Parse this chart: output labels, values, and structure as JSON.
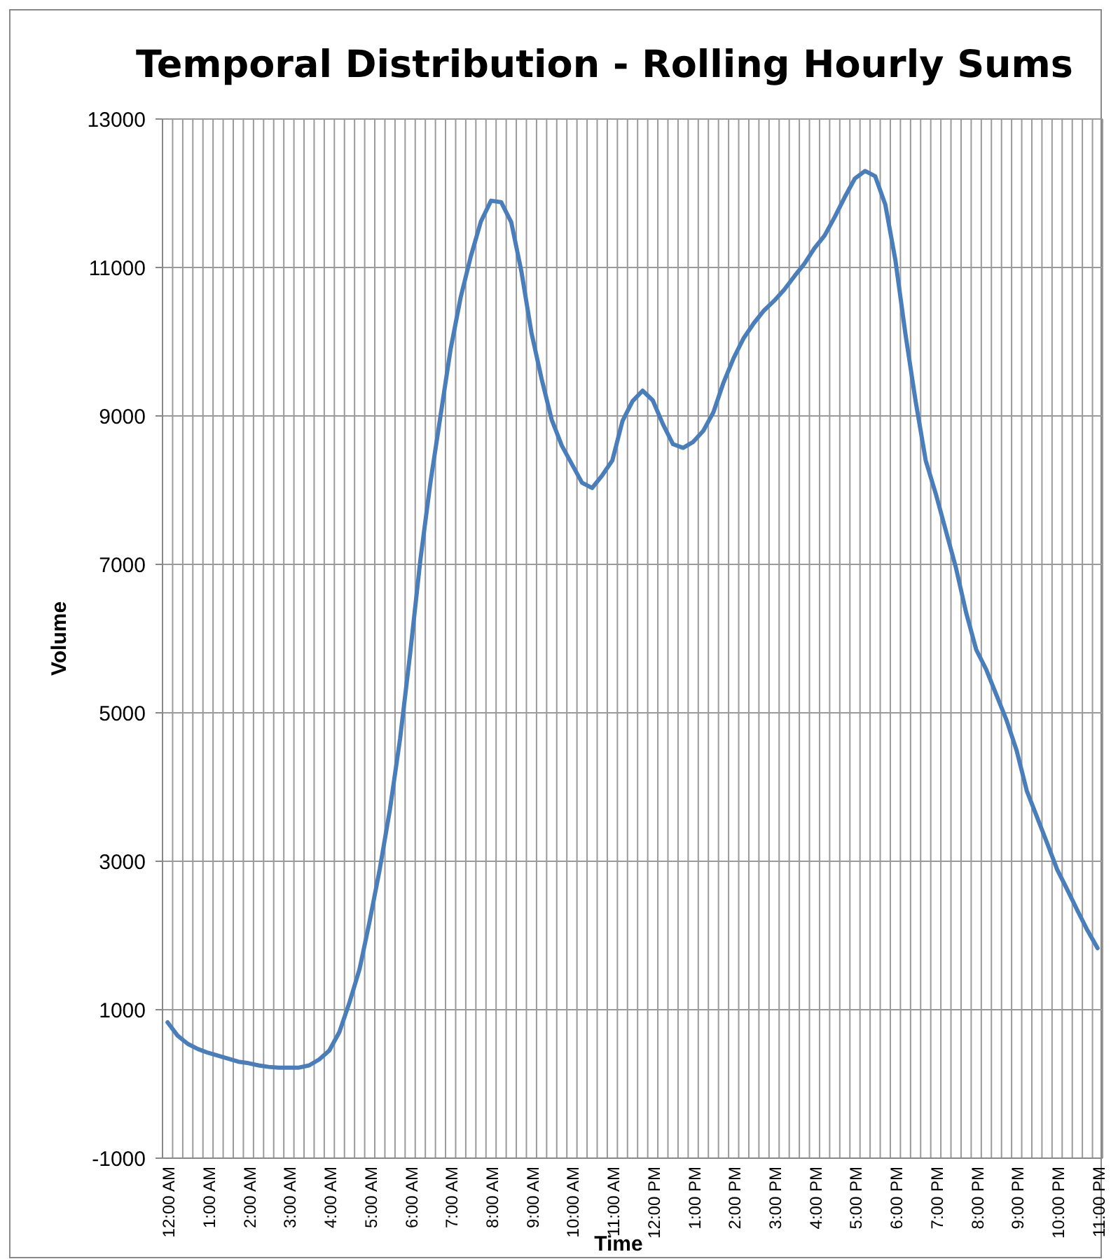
{
  "chart_data": {
    "type": "line",
    "title": "Temporal Distribution - Rolling Hourly Sums",
    "xlabel": "Time",
    "ylabel": "Volume",
    "categories": [
      "12:00 AM",
      null,
      null,
      null,
      "1:00 AM",
      null,
      null,
      null,
      "2:00 AM",
      null,
      null,
      null,
      "3:00 AM",
      null,
      null,
      null,
      "4:00 AM",
      null,
      null,
      null,
      "5:00 AM",
      null,
      null,
      null,
      "6:00 AM",
      null,
      null,
      null,
      "7:00 AM",
      null,
      null,
      null,
      "8:00 AM",
      null,
      null,
      null,
      "9:00 AM",
      null,
      null,
      null,
      "10:00 AM",
      null,
      null,
      null,
      "11:00 AM",
      null,
      null,
      null,
      "12:00 PM",
      null,
      null,
      null,
      "1:00 PM",
      null,
      null,
      null,
      "2:00 PM",
      null,
      null,
      null,
      "3:00 PM",
      null,
      null,
      null,
      "4:00 PM",
      null,
      null,
      null,
      "5:00 PM",
      null,
      null,
      null,
      "6:00 PM",
      null,
      null,
      null,
      "7:00 PM",
      null,
      null,
      null,
      "8:00 PM",
      null,
      null,
      null,
      "9:00 PM",
      null,
      null,
      null,
      "10:00 PM",
      null,
      null,
      null,
      "11:00 PM"
    ],
    "series": [
      {
        "color": "#4a7ebb",
        "values": [
          830,
          650,
          540,
          470,
          420,
          380,
          340,
          300,
          280,
          250,
          230,
          220,
          220,
          220,
          250,
          330,
          450,
          700,
          1100,
          1550,
          2200,
          2900,
          3700,
          4650,
          5800,
          7050,
          8100,
          9000,
          9900,
          10600,
          11150,
          11620,
          11900,
          11880,
          11610,
          10950,
          10120,
          9500,
          8950,
          8600,
          8350,
          8100,
          8030,
          8200,
          8400,
          8930,
          9200,
          9340,
          9210,
          8890,
          8620,
          8570,
          8650,
          8800,
          9050,
          9450,
          9780,
          10050,
          10250,
          10420,
          10550,
          10700,
          10880,
          11050,
          11260,
          11430,
          11680,
          11950,
          12200,
          12300,
          12230,
          11850,
          11100,
          10100,
          9200,
          8400,
          7950,
          7450,
          6950,
          6350,
          5850,
          5580,
          5240,
          4900,
          4490,
          3950,
          3600,
          3250,
          2890,
          2620,
          2340,
          2070,
          1830
        ]
      }
    ],
    "ylim": [
      -1000,
      13000
    ],
    "yticks": [
      -1000,
      1000,
      3000,
      5000,
      7000,
      9000,
      11000,
      13000
    ],
    "grid": true,
    "marker": "none",
    "line_style": "solid"
  }
}
